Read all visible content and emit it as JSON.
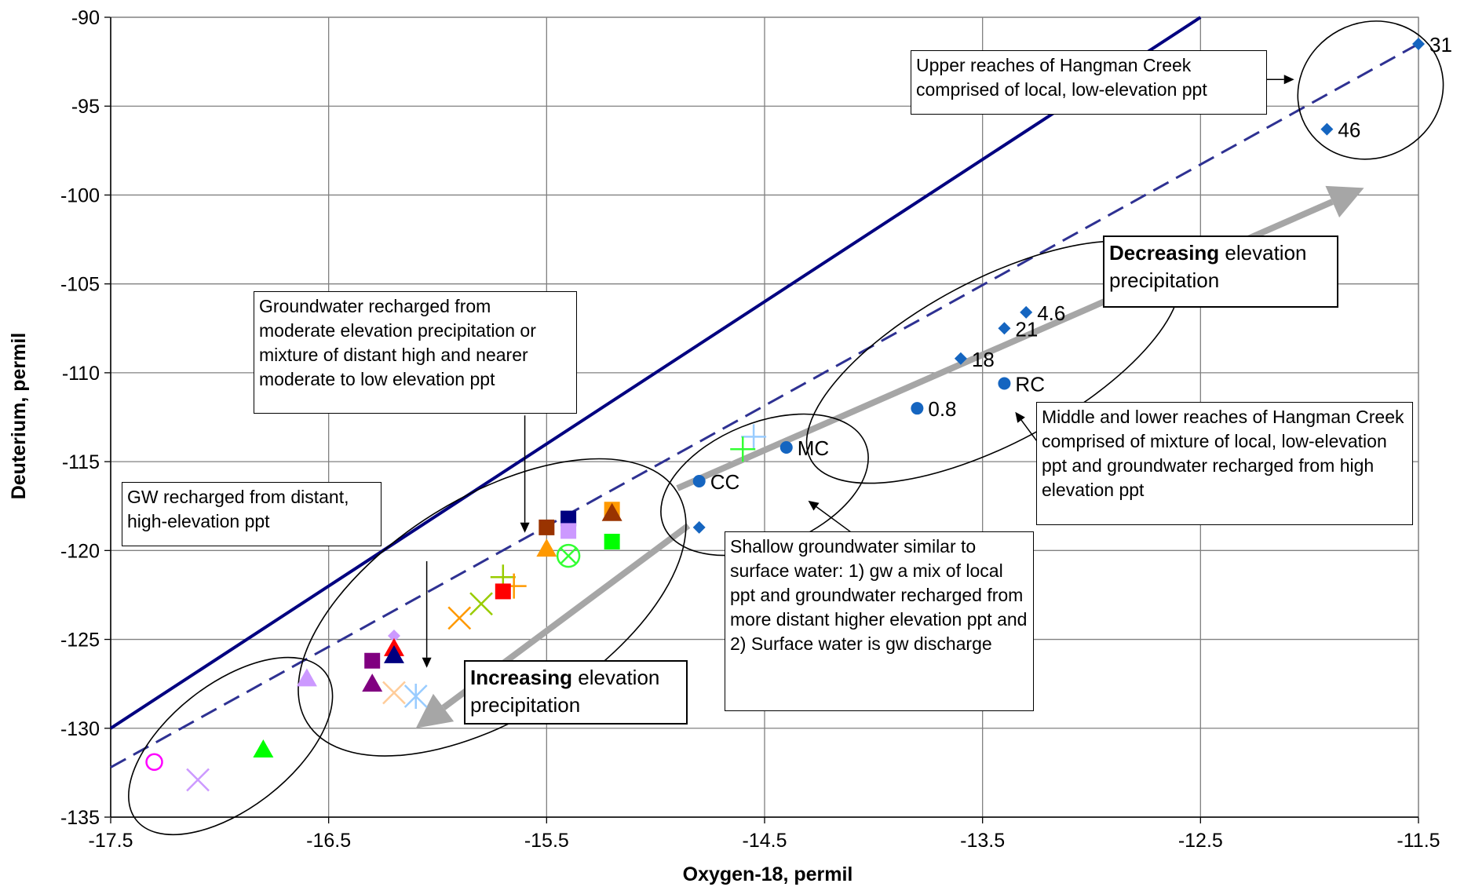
{
  "chart_data": {
    "type": "scatter",
    "xlabel": "Oxygen-18, permil",
    "ylabel": "Deuterium, permil",
    "xlim": [
      -17.5,
      -11.5
    ],
    "ylim": [
      -135,
      -90
    ],
    "xticks": [
      -17.5,
      -16.5,
      -15.5,
      -14.5,
      -13.5,
      -12.5,
      -11.5
    ],
    "yticks": [
      -90,
      -95,
      -100,
      -105,
      -110,
      -115,
      -120,
      -125,
      -130,
      -135
    ],
    "xtick_labels": [
      "-17.5",
      "-16.5",
      "-15.5",
      "-14.5",
      "-13.5",
      "-12.5",
      "-11.5"
    ],
    "ytick_labels": [
      "-90",
      "-95",
      "-100",
      "-105",
      "-110",
      "-115",
      "-120",
      "-125",
      "-130",
      "-135"
    ],
    "grid": true,
    "lines": [
      {
        "style": "solid",
        "color": "#000080",
        "x": [
          -17.5,
          -12.5
        ],
        "y": [
          -130,
          -90
        ]
      },
      {
        "style": "dashed",
        "color": "#2e3192",
        "x": [
          -17.5,
          -11.5
        ],
        "y": [
          -132.2,
          -91.5
        ]
      }
    ],
    "points": [
      {
        "x": -11.5,
        "y": -91.5,
        "marker": "diamond",
        "color": "#1565c0",
        "label": "31"
      },
      {
        "x": -11.92,
        "y": -96.3,
        "marker": "diamond",
        "color": "#1565c0",
        "label": "46"
      },
      {
        "x": -13.3,
        "y": -106.6,
        "marker": "diamond",
        "color": "#1565c0",
        "label": "4.6"
      },
      {
        "x": -13.4,
        "y": -107.5,
        "marker": "diamond",
        "color": "#1565c0",
        "label": "21"
      },
      {
        "x": -13.6,
        "y": -109.2,
        "marker": "diamond",
        "color": "#1565c0",
        "label": "18"
      },
      {
        "x": -13.4,
        "y": -110.6,
        "marker": "circle",
        "color": "#1565c0",
        "label": "RC"
      },
      {
        "x": -13.8,
        "y": -112,
        "marker": "circle",
        "color": "#1565c0",
        "label": "0.8"
      },
      {
        "x": -14.4,
        "y": -114.2,
        "marker": "circle",
        "color": "#1565c0",
        "label": "MC"
      },
      {
        "x": -14.8,
        "y": -116.1,
        "marker": "circle",
        "color": "#1565c0",
        "label": "CC"
      },
      {
        "x": -14.8,
        "y": -118.7,
        "marker": "diamond",
        "color": "#1565c0",
        "label": ""
      },
      {
        "x": -14.55,
        "y": -113.6,
        "marker": "plus",
        "color": "#99ccff",
        "label": ""
      },
      {
        "x": -14.6,
        "y": -114.3,
        "marker": "plus",
        "color": "#33ff33",
        "label": ""
      },
      {
        "x": -15.2,
        "y": -117.7,
        "marker": "square",
        "color": "#ff9900",
        "label": ""
      },
      {
        "x": -15.2,
        "y": -117.9,
        "marker": "triangle",
        "color": "#993300",
        "label": ""
      },
      {
        "x": -15.2,
        "y": -119.5,
        "marker": "square",
        "color": "#00ff00",
        "label": ""
      },
      {
        "x": -15.4,
        "y": -118.2,
        "marker": "square",
        "color": "#000080",
        "label": ""
      },
      {
        "x": -15.4,
        "y": -118.9,
        "marker": "square",
        "color": "#cc99ff",
        "label": ""
      },
      {
        "x": -15.5,
        "y": -118.7,
        "marker": "square",
        "color": "#993300",
        "label": ""
      },
      {
        "x": -15.5,
        "y": -119.9,
        "marker": "triangle",
        "color": "#ff9900",
        "label": ""
      },
      {
        "x": -15.4,
        "y": -120.3,
        "marker": "circle-x",
        "color": "#33ff33",
        "label": ""
      },
      {
        "x": -15.7,
        "y": -121.5,
        "marker": "plus",
        "color": "#99cc00",
        "label": ""
      },
      {
        "x": -15.65,
        "y": -122,
        "marker": "plus",
        "color": "#ff9900",
        "label": ""
      },
      {
        "x": -15.7,
        "y": -122.3,
        "marker": "square",
        "color": "#ff0000",
        "label": ""
      },
      {
        "x": -15.8,
        "y": -123,
        "marker": "x",
        "color": "#99cc00",
        "label": ""
      },
      {
        "x": -15.9,
        "y": -123.8,
        "marker": "x",
        "color": "#ff9900",
        "label": ""
      },
      {
        "x": -16.2,
        "y": -124.8,
        "marker": "diamond",
        "color": "#cc99ff",
        "label": ""
      },
      {
        "x": -16.2,
        "y": -125.5,
        "marker": "triangle",
        "color": "#ff0000",
        "label": ""
      },
      {
        "x": -16.2,
        "y": -125.9,
        "marker": "triangle",
        "color": "#000080",
        "label": ""
      },
      {
        "x": -16.3,
        "y": -126.2,
        "marker": "square",
        "color": "#800080",
        "label": ""
      },
      {
        "x": -16.3,
        "y": -127.5,
        "marker": "triangle",
        "color": "#800080",
        "label": ""
      },
      {
        "x": -16.2,
        "y": -128,
        "marker": "x",
        "color": "#ffcc99",
        "label": ""
      },
      {
        "x": -16.1,
        "y": -128.2,
        "marker": "asterisk",
        "color": "#99ccff",
        "label": ""
      },
      {
        "x": -16.6,
        "y": -127.2,
        "marker": "triangle",
        "color": "#cc99ff",
        "label": ""
      },
      {
        "x": -16.8,
        "y": -131.2,
        "marker": "triangle",
        "color": "#00ff00",
        "label": ""
      },
      {
        "x": -17.1,
        "y": -132.9,
        "marker": "x",
        "color": "#cc99ff",
        "label": ""
      },
      {
        "x": -17.3,
        "y": -131.9,
        "marker": "circle-open",
        "color": "#ff00ff",
        "label": ""
      }
    ],
    "ellipses": [
      {
        "cx": -11.72,
        "cy": -94.1,
        "rx_data": 0.34,
        "ry_data": 3.8,
        "tilt": -28
      },
      {
        "cx": -13.45,
        "cy": -109.4,
        "rx_data": 0.95,
        "ry_data": 4.6,
        "tilt": -28
      },
      {
        "cx": -14.5,
        "cy": -116.3,
        "rx_data": 0.5,
        "ry_data": 3.5,
        "tilt": -22
      },
      {
        "cx": -15.75,
        "cy": -123.2,
        "rx_data": 1.0,
        "ry_data": 6.2,
        "tilt": -32
      },
      {
        "cx": -16.95,
        "cy": -131.0,
        "rx_data": 0.55,
        "ry_data": 3.5,
        "tilt": -38
      }
    ],
    "arrows": [
      {
        "from": [
          -14.9,
          -116.5
        ],
        "to": [
          -11.75,
          -99.6
        ],
        "color": "#a6a6a6"
      },
      {
        "from": [
          -14.85,
          -118.6
        ],
        "to": [
          -16.1,
          -130.0
        ],
        "color": "#a6a6a6"
      }
    ],
    "pointer_arrows": [
      {
        "from": [
          -12.7,
          -93.5
        ],
        "to": [
          -12.07,
          -93.5
        ]
      },
      {
        "from": [
          -16.05,
          -120.6
        ],
        "to": [
          -16.05,
          -126.6
        ]
      },
      {
        "from": [
          -15.6,
          -112.4
        ],
        "to": [
          -15.6,
          -119.0
        ]
      },
      {
        "from": [
          -13.0,
          -118.0
        ],
        "to": [
          -13.35,
          -112.2
        ]
      },
      {
        "from": [
          -14.1,
          -119.0
        ],
        "to": [
          -14.3,
          -117.2
        ]
      }
    ]
  },
  "annotations": {
    "upper_reaches": "Upper reaches of Hangman Creek comprised of local, low-elevation ppt",
    "gw_moderate": "Groundwater  recharged from moderate elevation precipitation or mixture of distant high and nearer moderate to low elevation ppt",
    "gw_distant": "GW recharged from distant, high-elevation ppt",
    "middle_lower": "Middle and lower reaches of Hangman Creek comprised of mixture of local, low-elevation ppt and groundwater recharged from high elevation ppt",
    "shallow_gw": "Shallow groundwater similar to surface water: 1) gw a mix of local ppt and groundwater recharged from more distant higher elevation ppt and 2) Surface water is gw discharge",
    "decreasing_bold": "Decreasing",
    "decreasing_rest": " elevation precipitation",
    "increasing_bold": "Increasing",
    "increasing_rest": " elevation precipitation"
  }
}
